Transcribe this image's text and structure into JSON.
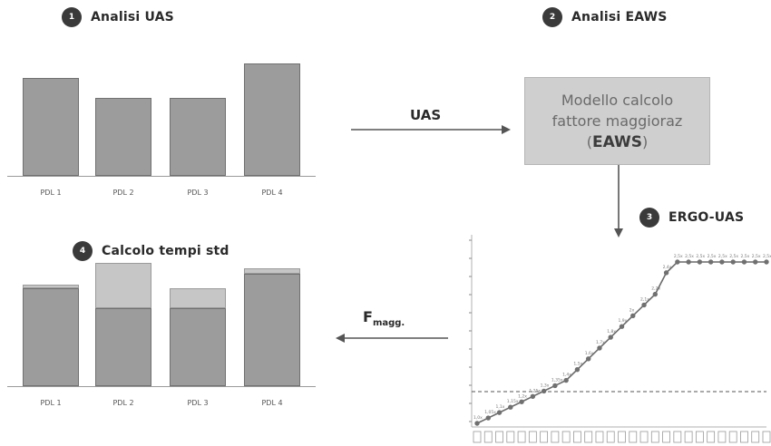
{
  "steps": {
    "s1": {
      "num": "1",
      "title": "Analisi UAS"
    },
    "s2": {
      "num": "2",
      "title": "Analisi EAWS"
    },
    "s3": {
      "num": "3",
      "title": "ERGO-UAS"
    },
    "s4": {
      "num": "4",
      "title": "Calcolo tempi std"
    }
  },
  "arrows": {
    "uas_label": "UAS",
    "fmagg_main": "F",
    "fmagg_sub": "magg."
  },
  "eaws_box": {
    "line1": "Modello calcolo",
    "line2": "fattore maggioraz",
    "line3_prefix": "(",
    "line3_strong": "EAWS",
    "line3_suffix": ")"
  },
  "uas_chart": {
    "labels": [
      "PDL 1",
      "PDL 2",
      "PDL 3",
      "PDL 4"
    ],
    "values": [
      108,
      86,
      86,
      124
    ]
  },
  "std_chart": {
    "labels": [
      "PDL 1",
      "PDL 2",
      "PDL 3",
      "PDL 4"
    ],
    "base": [
      108,
      86,
      86,
      124
    ],
    "increment": [
      4,
      50,
      22,
      6
    ]
  },
  "ergo_chart": {
    "point_labels": [
      "1,0x",
      "1,05x",
      "1,1x",
      "1,15x",
      "1,2x",
      "1,25x",
      "1,3x",
      "1,35x",
      "1,4x",
      "1,5x",
      "1,6x",
      "1,7x",
      "1,8x",
      "1,9x",
      "2x",
      "2,1x",
      "2,2x",
      "2,4x",
      "2,5x",
      "2,5x",
      "2,5x",
      "2,5x",
      "2,5x",
      "2,5x",
      "2,5x",
      "2,5x",
      "2,5x"
    ]
  },
  "colors": {
    "bar": "#9c9c9c",
    "increment": "#c6c6c6",
    "eaws_box": "#cfcfcf",
    "step_circle": "#3a3a3a"
  }
}
